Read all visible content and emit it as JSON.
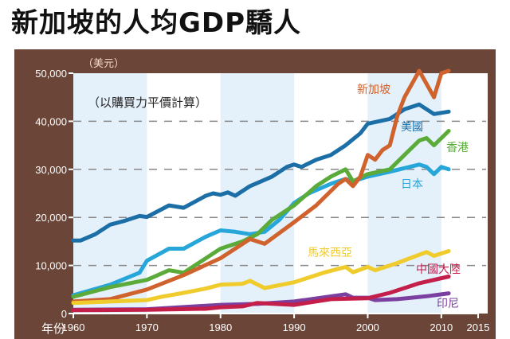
{
  "chart_data": {
    "type": "line",
    "title": "新加坡的人均GDP驕人",
    "subtitle": "（以購買力平價計算）",
    "ylabel": "（美元）",
    "xlabel": "年份",
    "xlim": [
      1960,
      2015
    ],
    "ylim": [
      0,
      50000
    ],
    "xticks": [
      1960,
      1970,
      1980,
      1990,
      2000,
      2010,
      2015
    ],
    "yticks": [
      0,
      10000,
      20000,
      30000,
      40000,
      50000
    ],
    "ytick_labels": [
      "0",
      "10,000",
      "20,000",
      "30,000",
      "40,000",
      "50,000"
    ],
    "grid": "dashed horizontal",
    "series": [
      {
        "name": "美國",
        "color": "#1b6fa6",
        "points": [
          [
            1960,
            15200
          ],
          [
            1961,
            15200
          ],
          [
            1963,
            16500
          ],
          [
            1965,
            18500
          ],
          [
            1967,
            19300
          ],
          [
            1969,
            20300
          ],
          [
            1970,
            20100
          ],
          [
            1973,
            22500
          ],
          [
            1975,
            22000
          ],
          [
            1978,
            24500
          ],
          [
            1979,
            25000
          ],
          [
            1980,
            24700
          ],
          [
            1981,
            25200
          ],
          [
            1982,
            24500
          ],
          [
            1984,
            26500
          ],
          [
            1987,
            28500
          ],
          [
            1989,
            30500
          ],
          [
            1990,
            31000
          ],
          [
            1991,
            30500
          ],
          [
            1993,
            32000
          ],
          [
            1995,
            33000
          ],
          [
            1997,
            35000
          ],
          [
            1999,
            37500
          ],
          [
            2000,
            39500
          ],
          [
            2003,
            40500
          ],
          [
            2005,
            42500
          ],
          [
            2007,
            43500
          ],
          [
            2009,
            41500
          ],
          [
            2011,
            42000
          ]
        ]
      },
      {
        "name": "日本",
        "color": "#27a6d9",
        "points": [
          [
            1960,
            3800
          ],
          [
            1965,
            6000
          ],
          [
            1969,
            8500
          ],
          [
            1970,
            11000
          ],
          [
            1973,
            13500
          ],
          [
            1975,
            13500
          ],
          [
            1978,
            16000
          ],
          [
            1980,
            17300
          ],
          [
            1982,
            17000
          ],
          [
            1984,
            16500
          ],
          [
            1986,
            17000
          ],
          [
            1988,
            19500
          ],
          [
            1990,
            23000
          ],
          [
            1992,
            25000
          ],
          [
            1995,
            27000
          ],
          [
            1997,
            28000
          ],
          [
            1998,
            27500
          ],
          [
            2000,
            28500
          ],
          [
            2003,
            29500
          ],
          [
            2007,
            31000
          ],
          [
            2008,
            30500
          ],
          [
            2009,
            29000
          ],
          [
            2010,
            30500
          ],
          [
            2011,
            30000
          ]
        ]
      },
      {
        "name": "香港",
        "color": "#5aab3a",
        "points": [
          [
            1960,
            3500
          ],
          [
            1965,
            5500
          ],
          [
            1970,
            7000
          ],
          [
            1973,
            9000
          ],
          [
            1975,
            8500
          ],
          [
            1977,
            10500
          ],
          [
            1980,
            13500
          ],
          [
            1983,
            15000
          ],
          [
            1985,
            16500
          ],
          [
            1987,
            19500
          ],
          [
            1990,
            22500
          ],
          [
            1993,
            26500
          ],
          [
            1995,
            28500
          ],
          [
            1997,
            30000
          ],
          [
            1998,
            27500
          ],
          [
            2000,
            29000
          ],
          [
            2003,
            30000
          ],
          [
            2005,
            33000
          ],
          [
            2007,
            36000
          ],
          [
            2008,
            36500
          ],
          [
            2009,
            35000
          ],
          [
            2011,
            38000
          ]
        ]
      },
      {
        "name": "新加坡",
        "color": "#d0622d",
        "points": [
          [
            1960,
            2500
          ],
          [
            1965,
            3000
          ],
          [
            1970,
            5000
          ],
          [
            1975,
            8000
          ],
          [
            1980,
            11500
          ],
          [
            1984,
            15500
          ],
          [
            1986,
            14500
          ],
          [
            1990,
            19000
          ],
          [
            1993,
            22500
          ],
          [
            1996,
            27000
          ],
          [
            1997,
            28000
          ],
          [
            1998,
            26500
          ],
          [
            1999,
            28500
          ],
          [
            2000,
            33000
          ],
          [
            2001,
            32000
          ],
          [
            2002,
            34000
          ],
          [
            2003,
            35000
          ],
          [
            2004,
            41000
          ],
          [
            2005,
            45000
          ],
          [
            2007,
            50500
          ],
          [
            2009,
            45000
          ],
          [
            2010,
            50000
          ],
          [
            2011,
            50500
          ]
        ]
      },
      {
        "name": "馬來西亞",
        "color": "#f0cb2c",
        "points": [
          [
            1960,
            2200
          ],
          [
            1965,
            2500
          ],
          [
            1970,
            2800
          ],
          [
            1972,
            3500
          ],
          [
            1975,
            4300
          ],
          [
            1978,
            5200
          ],
          [
            1980,
            6000
          ],
          [
            1983,
            6200
          ],
          [
            1984,
            6800
          ],
          [
            1986,
            5300
          ],
          [
            1990,
            6500
          ],
          [
            1994,
            8500
          ],
          [
            1997,
            9700
          ],
          [
            1998,
            8600
          ],
          [
            2000,
            9700
          ],
          [
            2001,
            9000
          ],
          [
            2004,
            10500
          ],
          [
            2008,
            12800
          ],
          [
            2009,
            12000
          ],
          [
            2011,
            13000
          ]
        ]
      },
      {
        "name": "印尼",
        "color": "#7b3fa0",
        "points": [
          [
            1960,
            800
          ],
          [
            1970,
            900
          ],
          [
            1980,
            1800
          ],
          [
            1985,
            2000
          ],
          [
            1990,
            2500
          ],
          [
            1997,
            4000
          ],
          [
            1998,
            3300
          ],
          [
            2000,
            3300
          ],
          [
            2001,
            2800
          ],
          [
            2004,
            3000
          ],
          [
            2008,
            3600
          ],
          [
            2011,
            4200
          ]
        ]
      },
      {
        "name": "中國大陸",
        "color": "#c41e4a",
        "points": [
          [
            1960,
            700
          ],
          [
            1970,
            800
          ],
          [
            1978,
            1000
          ],
          [
            1980,
            1300
          ],
          [
            1983,
            1500
          ],
          [
            1985,
            2200
          ],
          [
            1990,
            1800
          ],
          [
            1995,
            3000
          ],
          [
            2000,
            3200
          ],
          [
            2003,
            4300
          ],
          [
            2007,
            6300
          ],
          [
            2011,
            7700
          ]
        ]
      }
    ]
  }
}
